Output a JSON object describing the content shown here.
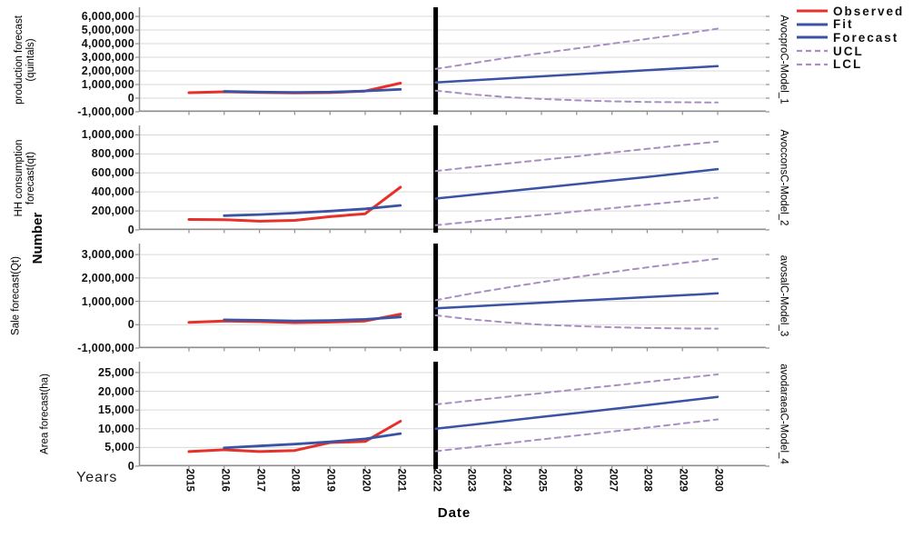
{
  "figure": {
    "colors": {
      "observed": "#e6312b",
      "fit": "#3a53a4",
      "interval": "#a78fc1",
      "grid": "#d9d9d9",
      "axis": "#8f8f8f",
      "separator": "#000000"
    },
    "legend": [
      {
        "label": "Observed",
        "style": "solid",
        "color_key": "observed"
      },
      {
        "label": "Fit",
        "style": "solid",
        "color_key": "fit"
      },
      {
        "label": "Forecast",
        "style": "solid",
        "color_key": "fit"
      },
      {
        "label": "UCL",
        "style": "dashed",
        "color_key": "interval"
      },
      {
        "label": "LCL",
        "style": "dashed",
        "color_key": "interval"
      }
    ]
  },
  "chart_data": {
    "type": "line",
    "xlabel": "Date",
    "x_axis_side_label": "Years",
    "ylabel": "Number",
    "x": [
      2015,
      2016,
      2017,
      2018,
      2019,
      2020,
      2021,
      2022,
      2023,
      2024,
      2025,
      2026,
      2027,
      2028,
      2029,
      2030
    ],
    "separator_x": 2022,
    "legend_position": "top-right",
    "grid": true,
    "panels": [
      {
        "ylabel_lines": [
          "production forecast",
          "(quintals)"
        ],
        "right_label": "AvocproC-Model_1",
        "ylim": [
          -1000000,
          6670000
        ],
        "yticks": [
          -1000000,
          0,
          1000000,
          2000000,
          3000000,
          4000000,
          5000000,
          6000000
        ],
        "series": {
          "observed": {
            "start": 2015,
            "values": [
              400000,
              470000,
              420000,
              380000,
              410000,
              520000,
              1100000
            ]
          },
          "fit": {
            "start": 2016,
            "values": [
              500000,
              450000,
              430000,
              450000,
              530000,
              650000
            ]
          },
          "forecast": {
            "start": 2022,
            "values": [
              1150000,
              1300000,
              1450000,
              1600000,
              1750000,
              1900000,
              2050000,
              2200000,
              2350000
            ]
          },
          "ucl": {
            "start": 2022,
            "values": [
              2150000,
              2550000,
              2950000,
              3300000,
              3650000,
              4000000,
              4350000,
              4700000,
              5100000
            ]
          },
          "lcl": {
            "start": 2022,
            "values": [
              550000,
              280000,
              80000,
              -60000,
              -160000,
              -230000,
              -280000,
              -300000,
              -320000
            ]
          }
        }
      },
      {
        "ylabel_lines": [
          "HH consumption",
          "forecast(qt)"
        ],
        "right_label": "AvocconsC-Model_2",
        "ylim": [
          0,
          1100000
        ],
        "yticks": [
          0,
          200000,
          400000,
          600000,
          800000,
          1000000
        ],
        "series": {
          "observed": {
            "start": 2015,
            "values": [
              110000,
              108000,
              92000,
              100000,
              140000,
              170000,
              450000
            ]
          },
          "fit": {
            "start": 2016,
            "values": [
              150000,
              162000,
              178000,
              198000,
              222000,
              258000
            ]
          },
          "forecast": {
            "start": 2022,
            "values": [
              330000,
              368000,
              406000,
              444000,
              482000,
              520000,
              558000,
              598000,
              640000
            ]
          },
          "ucl": {
            "start": 2022,
            "values": [
              620000,
              660000,
              698000,
              736000,
              775000,
              814000,
              853000,
              892000,
              930000
            ]
          },
          "lcl": {
            "start": 2022,
            "values": [
              50000,
              86000,
              122000,
              158000,
              194000,
              230000,
              266000,
              302000,
              340000
            ]
          }
        }
      },
      {
        "ylabel_lines": [
          "Sale forecast(Qt)"
        ],
        "right_label": "avosalC-Model_3",
        "ylim": [
          -1000000,
          3470000
        ],
        "yticks": [
          -1000000,
          0,
          1000000,
          2000000,
          3000000
        ],
        "series": {
          "observed": {
            "start": 2015,
            "values": [
              100000,
              160000,
              130000,
              90000,
              110000,
              160000,
              450000
            ]
          },
          "fit": {
            "start": 2016,
            "values": [
              210000,
              190000,
              160000,
              180000,
              230000,
              330000
            ]
          },
          "forecast": {
            "start": 2022,
            "values": [
              700000,
              780000,
              860000,
              940000,
              1020000,
              1100000,
              1180000,
              1260000,
              1340000
            ]
          },
          "ucl": {
            "start": 2022,
            "values": [
              1050000,
              1330000,
              1580000,
              1820000,
              2040000,
              2250000,
              2450000,
              2640000,
              2820000
            ]
          },
          "lcl": {
            "start": 2022,
            "values": [
              400000,
              230000,
              100000,
              0,
              -60000,
              -110000,
              -140000,
              -160000,
              -170000
            ]
          }
        }
      },
      {
        "ylabel_lines": [
          "Area forecast(ha)"
        ],
        "right_label": "avodaraeaC-Model_4",
        "ylim": [
          0,
          27900
        ],
        "yticks": [
          0,
          5000,
          10000,
          15000,
          20000,
          25000
        ],
        "series": {
          "observed": {
            "start": 2015,
            "values": [
              3900,
              4400,
              3900,
              4200,
              6300,
              6600,
              12000
            ]
          },
          "fit": {
            "start": 2016,
            "values": [
              4900,
              5400,
              5900,
              6500,
              7300,
              8700
            ]
          },
          "forecast": {
            "start": 2022,
            "values": [
              10000,
              11050,
              12100,
              13150,
              14200,
              15250,
              16300,
              17400,
              18500
            ]
          },
          "ucl": {
            "start": 2022,
            "values": [
              16500,
              17500,
              18500,
              19500,
              20500,
              21500,
              22500,
              23500,
              24500
            ]
          },
          "lcl": {
            "start": 2022,
            "values": [
              4000,
              5050,
              6100,
              7150,
              8200,
              9250,
              10300,
              11400,
              12500
            ]
          }
        }
      }
    ]
  }
}
